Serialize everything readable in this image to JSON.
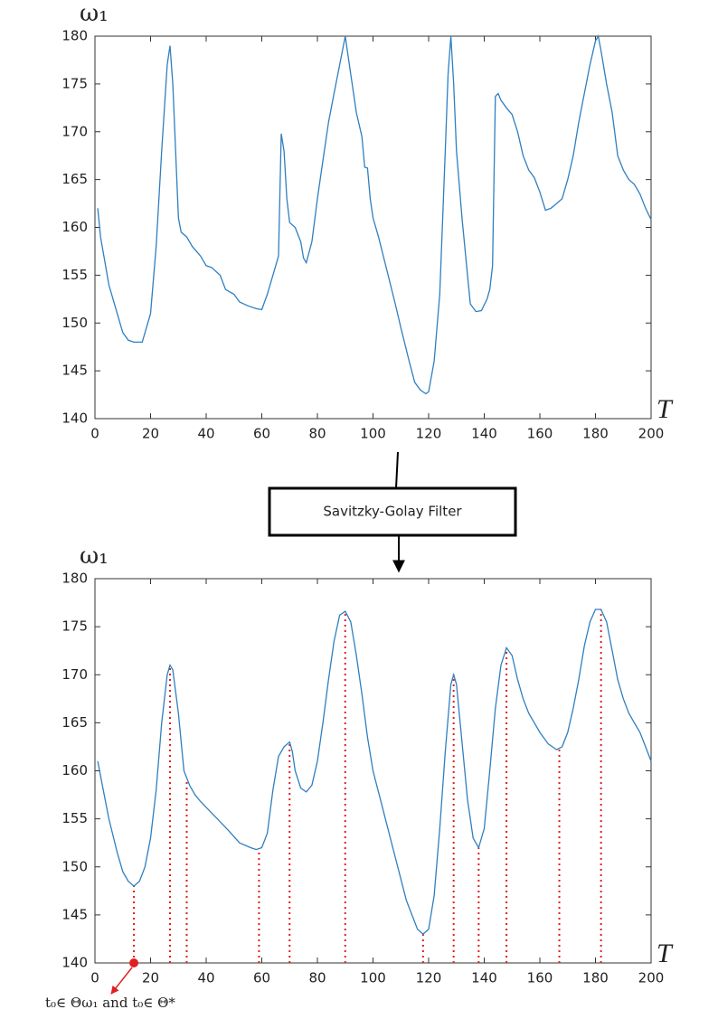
{
  "chart_data": [
    {
      "type": "line",
      "ylabel": "ω₁",
      "xlabel": "T",
      "xlim": [
        0,
        200
      ],
      "ylim": [
        140,
        180
      ],
      "xticks": [
        0,
        20,
        40,
        60,
        80,
        100,
        120,
        140,
        160,
        180,
        200
      ],
      "yticks": [
        140,
        145,
        150,
        155,
        160,
        165,
        170,
        175,
        180
      ],
      "grid": false,
      "x": [
        1,
        2,
        5,
        8,
        10,
        12,
        14,
        17,
        20,
        22,
        24,
        26,
        27,
        28,
        29,
        30,
        31,
        33,
        35,
        38,
        40,
        42,
        45,
        47,
        50,
        52,
        55,
        58,
        60,
        62,
        64,
        66,
        67,
        68,
        69,
        70,
        72,
        74,
        75,
        76,
        78,
        80,
        82,
        84,
        86,
        88,
        90,
        92,
        94,
        96,
        97,
        98,
        99,
        100,
        102,
        105,
        108,
        110,
        113,
        115,
        117,
        119,
        120,
        122,
        124,
        126,
        127,
        128,
        129,
        130,
        132,
        134,
        135,
        137,
        139,
        141,
        142,
        143,
        144,
        145,
        146,
        148,
        150,
        152,
        154,
        156,
        158,
        160,
        162,
        164,
        166,
        168,
        170,
        172,
        174,
        176,
        178,
        180,
        181,
        182,
        184,
        186,
        188,
        190,
        192,
        194,
        196,
        198,
        200
      ],
      "series": [
        {
          "color": "#2f7fc0",
          "values": [
            162,
            159,
            154,
            151,
            149,
            148.2,
            148,
            148,
            151,
            158,
            168,
            177,
            179,
            175,
            168,
            161,
            159.5,
            159,
            158,
            157,
            156,
            155.8,
            155,
            153.5,
            153,
            152.2,
            151.8,
            151.5,
            151.4,
            153,
            155,
            157,
            169.8,
            168,
            163,
            160.5,
            160,
            158.5,
            156.8,
            156.3,
            158.5,
            163,
            167,
            171,
            174,
            177,
            180,
            176,
            172,
            169.5,
            166.3,
            166.2,
            163,
            161,
            159,
            155.5,
            152,
            149.5,
            146,
            143.8,
            143,
            142.6,
            142.8,
            146,
            153,
            168,
            176,
            180,
            175,
            168,
            161,
            155,
            152,
            151.2,
            151.3,
            152.5,
            153.5,
            156,
            173.7,
            174,
            173.3,
            172.5,
            171.8,
            170,
            167.5,
            166,
            165.2,
            163.7,
            161.8,
            162,
            162.5,
            163,
            165,
            167.5,
            171,
            174,
            177,
            179.5,
            180,
            178.5,
            175,
            172,
            167.5,
            166,
            165,
            164.5,
            163.5,
            162,
            160.8
          ]
        }
      ]
    },
    {
      "type": "line",
      "ylabel": "ω₁",
      "xlabel": "T",
      "xlim": [
        0,
        200
      ],
      "ylim": [
        140,
        180
      ],
      "xticks": [
        0,
        20,
        40,
        60,
        80,
        100,
        120,
        140,
        160,
        180,
        200
      ],
      "yticks": [
        140,
        145,
        150,
        155,
        160,
        165,
        170,
        175,
        180
      ],
      "grid": false,
      "x": [
        1,
        3,
        5,
        8,
        10,
        12,
        14,
        16,
        18,
        20,
        22,
        24,
        26,
        27,
        28,
        30,
        32,
        34,
        36,
        38,
        40,
        44,
        48,
        52,
        56,
        58,
        60,
        62,
        64,
        66,
        68,
        70,
        71,
        72,
        74,
        76,
        78,
        80,
        82,
        84,
        86,
        88,
        90,
        92,
        94,
        96,
        98,
        100,
        104,
        108,
        112,
        116,
        118,
        120,
        122,
        124,
        126,
        128,
        129,
        130,
        132,
        134,
        136,
        138,
        140,
        142,
        144,
        146,
        148,
        150,
        152,
        154,
        156,
        158,
        160,
        163,
        166,
        168,
        170,
        172,
        174,
        176,
        178,
        180,
        182,
        184,
        186,
        188,
        190,
        192,
        194,
        196,
        198,
        200
      ],
      "series": [
        {
          "color": "#2f7fc0",
          "values": [
            161,
            158,
            155,
            151.5,
            149.5,
            148.5,
            148,
            148.5,
            150,
            153,
            158,
            165,
            170,
            171,
            170.5,
            166,
            160,
            158.5,
            157.5,
            156.8,
            156.2,
            155,
            153.8,
            152.5,
            152,
            151.8,
            152,
            153.5,
            158,
            161.5,
            162.5,
            163,
            162,
            160,
            158.2,
            157.8,
            158.5,
            161,
            165,
            169.5,
            173.5,
            176.2,
            176.6,
            175.5,
            172,
            168,
            163.5,
            160,
            155.5,
            151,
            146.5,
            143.5,
            143,
            143.5,
            147,
            154,
            162,
            169,
            170,
            169,
            163,
            157,
            153,
            152,
            154,
            160,
            166.5,
            171,
            172.8,
            172,
            169.5,
            167.5,
            166,
            165,
            164,
            162.8,
            162.2,
            162.5,
            164,
            166.5,
            169.5,
            173,
            175.5,
            176.8,
            176.8,
            175.5,
            172.5,
            169.5,
            167.5,
            166,
            165,
            164,
            162.5,
            161
          ]
        }
      ],
      "markers": {
        "color": "#e02020",
        "x": [
          14,
          27,
          33,
          59,
          70,
          90,
          118,
          129,
          138,
          148,
          167,
          182
        ],
        "values": [
          148,
          171,
          159,
          151.8,
          163,
          176.6,
          143,
          170,
          152,
          172.8,
          162.2,
          176.8
        ]
      },
      "annotation": {
        "text": "t₀∈ Θω₁ and  t₀∈ Θ*",
        "x": 14,
        "y": 140,
        "color": "#e02020"
      }
    }
  ],
  "filter": {
    "label": "Savitzky-Golay Filter"
  }
}
